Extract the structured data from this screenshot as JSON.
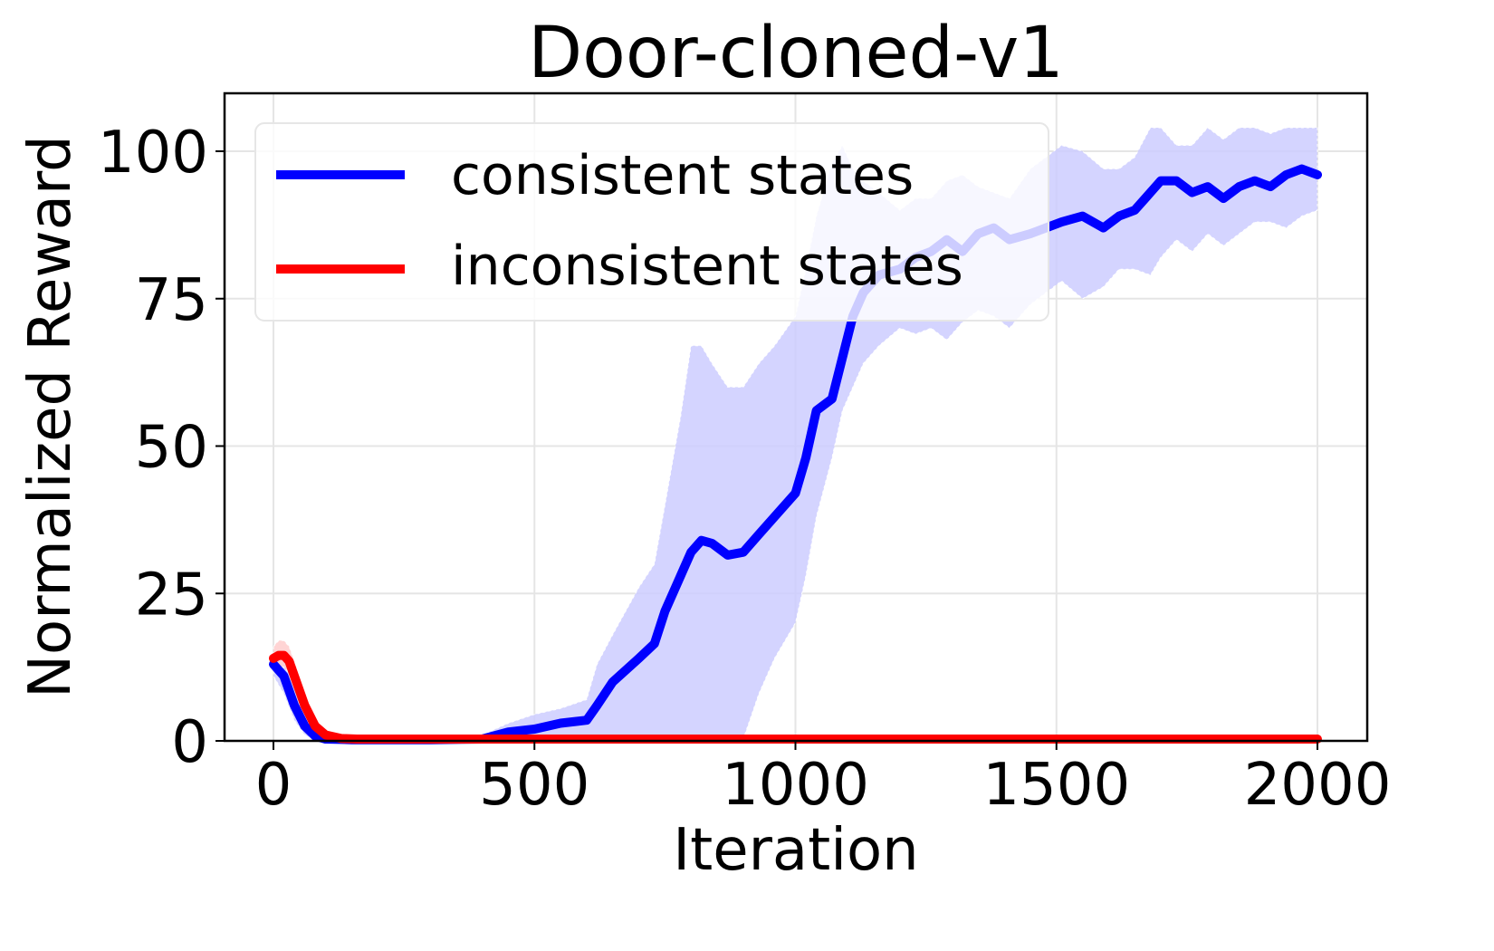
{
  "chart_data": {
    "type": "line",
    "title": "Door-cloned-v1",
    "xlabel": "Iteration",
    "ylabel": "Normalized Reward",
    "xlim": [
      -95,
      2095
    ],
    "ylim": [
      0,
      110
    ],
    "xticks": [
      0,
      500,
      1000,
      1500,
      2000
    ],
    "yticks": [
      0,
      25,
      50,
      75,
      100
    ],
    "xtick_labels": [
      "0",
      "500",
      "1000",
      "1500",
      "2000"
    ],
    "ytick_labels": [
      "0",
      "25",
      "50",
      "75",
      "100"
    ],
    "grid": true,
    "legend_position": "upper left",
    "series": [
      {
        "name": "consistent states",
        "color": "#0000ff",
        "band_color": "#ccccff",
        "x": [
          0,
          20,
          40,
          60,
          80,
          100,
          150,
          200,
          300,
          400,
          450,
          500,
          550,
          600,
          620,
          650,
          700,
          730,
          750,
          780,
          800,
          820,
          840,
          870,
          900,
          930,
          960,
          1000,
          1020,
          1040,
          1070,
          1090,
          1110,
          1130,
          1160,
          1200,
          1230,
          1260,
          1290,
          1320,
          1350,
          1380,
          1410,
          1450,
          1480,
          1510,
          1550,
          1590,
          1620,
          1650,
          1680,
          1700,
          1730,
          1760,
          1790,
          1820,
          1850,
          1880,
          1910,
          1940,
          1970,
          2000
        ],
        "values": [
          13,
          11,
          6,
          2.5,
          0.8,
          0.3,
          0.2,
          0.2,
          0.2,
          0.3,
          1.5,
          2,
          3,
          3.5,
          6,
          10,
          14,
          16.5,
          22,
          28,
          32,
          34,
          33.5,
          31.5,
          32,
          35,
          38,
          42,
          48,
          56,
          58,
          65,
          72,
          76,
          79,
          80,
          82,
          83,
          85,
          83,
          86,
          87,
          85,
          86,
          87,
          88,
          89,
          87,
          89,
          90,
          93,
          95,
          95,
          93,
          94,
          92,
          94,
          95,
          94,
          96,
          97,
          96
        ],
        "upper": [
          15,
          14,
          9,
          4,
          1.5,
          0.5,
          0.3,
          0.3,
          0.4,
          1,
          3,
          4.5,
          5.5,
          7,
          13,
          18,
          26,
          30,
          40,
          55,
          67,
          67,
          64,
          60,
          60,
          64,
          67,
          72,
          80,
          89,
          98,
          101,
          97,
          95,
          93,
          90,
          92,
          92,
          95,
          96,
          94,
          93,
          92,
          97,
          99,
          101,
          100,
          97,
          97,
          99,
          104,
          104,
          101,
          101,
          104,
          102,
          104,
          104,
          103,
          104,
          104,
          104
        ],
        "lower": [
          11,
          8,
          3.5,
          1,
          0.2,
          0.1,
          0.1,
          0.1,
          0.1,
          0.1,
          0.2,
          0.3,
          0.4,
          0.5,
          0.5,
          0.5,
          0.3,
          0.2,
          0.2,
          0.3,
          0.4,
          0.3,
          0.2,
          0.2,
          0.3,
          8,
          14,
          20,
          28,
          38,
          48,
          56,
          60,
          64,
          67,
          70,
          69,
          70,
          68,
          71,
          73,
          72,
          70,
          74,
          76,
          78,
          75,
          77,
          80,
          80,
          79,
          82,
          85,
          83,
          86,
          84,
          86,
          88,
          88,
          87,
          89,
          90
        ]
      },
      {
        "name": "inconsistent states",
        "color": "#ff0000",
        "band_color": "#ffcccc",
        "x": [
          0,
          10,
          20,
          30,
          40,
          60,
          80,
          100,
          130,
          160,
          200,
          500,
          1000,
          1500,
          2000
        ],
        "values": [
          14,
          14.5,
          14.5,
          13.5,
          11,
          6,
          2.5,
          1,
          0.4,
          0.3,
          0.3,
          0.3,
          0.3,
          0.3,
          0.3
        ],
        "upper": [
          16,
          17,
          17,
          16,
          13.5,
          8,
          3.5,
          1.5,
          0.6,
          0.4,
          0.4,
          0.4,
          0.4,
          0.4,
          0.4
        ],
        "lower": [
          12,
          12.5,
          12.5,
          11.5,
          9,
          4.5,
          1.7,
          0.6,
          0.3,
          0.2,
          0.2,
          0.2,
          0.2,
          0.2,
          0.2
        ]
      }
    ]
  }
}
